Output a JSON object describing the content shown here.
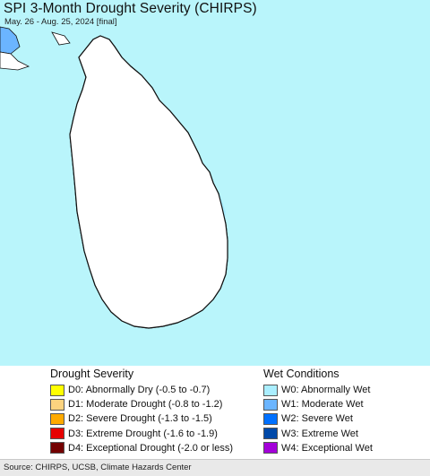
{
  "map": {
    "title": "SPI 3-Month Drought Severity (CHIRPS)",
    "subtitle": "May. 26 - Aug. 25, 2024 [final]",
    "colors": {
      "ocean": "#b9f5fb",
      "land": "#ffffff",
      "outline": "#111111",
      "boundary": "#333333"
    }
  },
  "legend": {
    "drought": {
      "heading": "Drought Severity",
      "items": [
        {
          "label": "D0: Abnormally Dry (-0.5 to -0.7)",
          "color": "#ffff00"
        },
        {
          "label": "D1: Moderate Drought (-0.8 to -1.2)",
          "color": "#fcd37f"
        },
        {
          "label": "D2: Severe Drought (-1.3 to -1.5)",
          "color": "#ffaa00"
        },
        {
          "label": "D3: Extreme Drought (-1.6 to -1.9)",
          "color": "#e60000"
        },
        {
          "label": "D4: Exceptional Drought (-2.0 or less)",
          "color": "#730000"
        }
      ]
    },
    "wet": {
      "heading": "Wet Conditions",
      "items": [
        {
          "label": "W0: Abnormally Wet",
          "color": "#aaeeff"
        },
        {
          "label": "W1: Moderate Wet",
          "color": "#6bb5ff"
        },
        {
          "label": "W2: Severe Wet",
          "color": "#0070ff"
        },
        {
          "label": "W3: Extreme Wet",
          "color": "#0049a8"
        },
        {
          "label": "W4: Exceptional Wet",
          "color": "#a300d9"
        }
      ]
    }
  },
  "footer": {
    "source": "Source: CHIRPS, UCSB, Climate Hazards Center"
  }
}
